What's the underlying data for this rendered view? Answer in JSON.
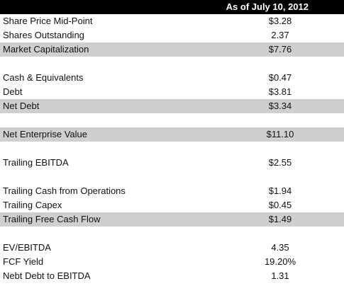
{
  "header": {
    "title": "As of July 10, 2012"
  },
  "rows": [
    {
      "label": "Share Price Mid-Point",
      "value": "$3.28",
      "shaded": false
    },
    {
      "label": "Shares Outstanding",
      "value": "2.37",
      "shaded": false
    },
    {
      "label": "Market Capitalization",
      "value": "$7.76",
      "shaded": true
    },
    {
      "label": "",
      "value": "",
      "shaded": false
    },
    {
      "label": "Cash & Equivalents",
      "value": "$0.47",
      "shaded": false
    },
    {
      "label": "Debt",
      "value": "$3.81",
      "shaded": false
    },
    {
      "label": "Net Debt",
      "value": "$3.34",
      "shaded": true
    },
    {
      "label": "",
      "value": "",
      "shaded": false
    },
    {
      "label": "Net Enterprise Value",
      "value": "$11.10",
      "shaded": true
    },
    {
      "label": "",
      "value": "",
      "shaded": false
    },
    {
      "label": "Trailing EBITDA",
      "value": "$2.55",
      "shaded": false
    },
    {
      "label": "",
      "value": "",
      "shaded": false
    },
    {
      "label": "Trailing Cash from Operations",
      "value": "$1.94",
      "shaded": false
    },
    {
      "label": "Trailing Capex",
      "value": "$0.45",
      "shaded": false
    },
    {
      "label": "Trailing Free Cash Flow",
      "value": "$1.49",
      "shaded": true
    },
    {
      "label": "",
      "value": "",
      "shaded": false
    },
    {
      "label": "EV/EBITDA",
      "value": "4.35",
      "shaded": false
    },
    {
      "label": "FCF Yield",
      "value": "19.20%",
      "shaded": false
    },
    {
      "label": "Nebt Debt to EBITDA",
      "value": "1.31",
      "shaded": false
    }
  ]
}
